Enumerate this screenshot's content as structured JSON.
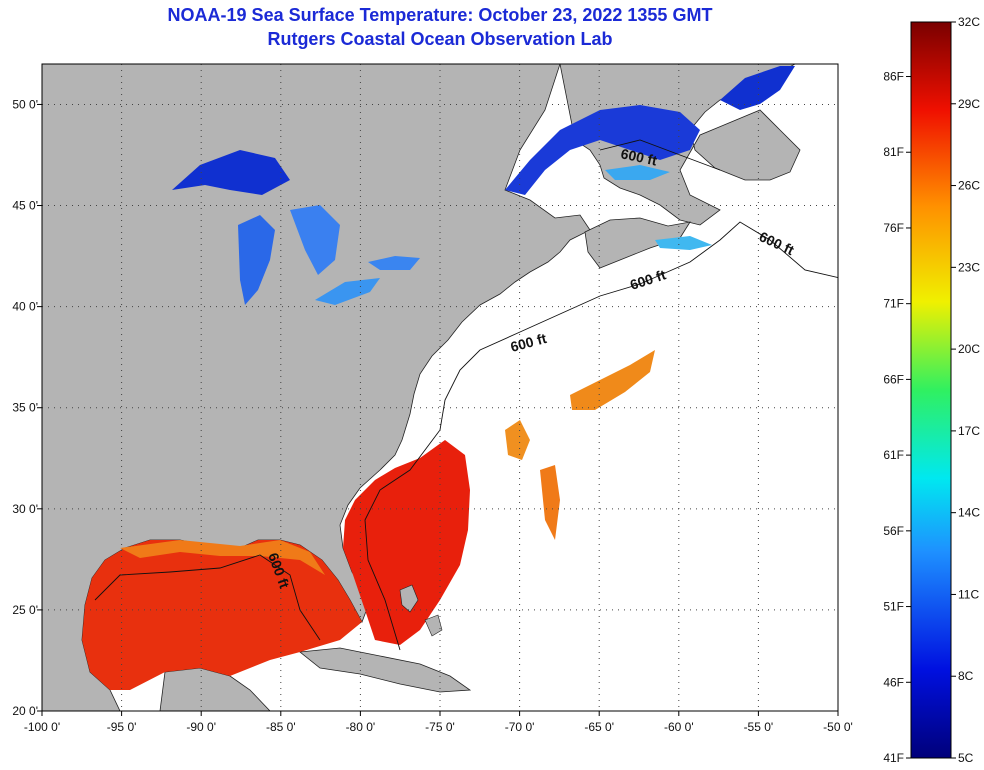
{
  "title": {
    "line1": "NOAA-19 Sea Surface Temperature:  October 23, 2022 1355 GMT",
    "line2": "Rutgers Coastal Ocean Observation Lab"
  },
  "map": {
    "lon_range": [
      -100,
      -50
    ],
    "lat_range": [
      20,
      52
    ],
    "lon_ticks": [
      "-100 0'",
      "-95 0'",
      "-90 0'",
      "-85 0'",
      "-80 0'",
      "-75 0'",
      "-70 0'",
      "-65 0'",
      "-60 0'",
      "-55 0'",
      "-50 0'"
    ],
    "lat_ticks": [
      "20 0'",
      "25 0'",
      "30 0'",
      "35 0'",
      "40 0'",
      "45 0'",
      "50 0'"
    ],
    "contour_labels": [
      "600 ft",
      "600 ft",
      "600 ft",
      "600 ft",
      "600 ft"
    ],
    "land_color": "#b4b4b4",
    "no_data_color": "#ffffff"
  },
  "colorbar": {
    "celsius_labels": [
      "32C",
      "29C",
      "26C",
      "23C",
      "20C",
      "17C",
      "14C",
      "11C",
      "8C",
      "5C"
    ],
    "fahrenheit_labels": [
      "86F",
      "81F",
      "76F",
      "71F",
      "66F",
      "61F",
      "56F",
      "51F",
      "46F",
      "41F"
    ],
    "range_c": [
      5,
      32
    ]
  },
  "colors": {
    "title": "#1b2ad6",
    "warm": "#e8200c",
    "orange": "#f08a1a",
    "cold": "#1030d0",
    "cool": "#3080f0"
  }
}
